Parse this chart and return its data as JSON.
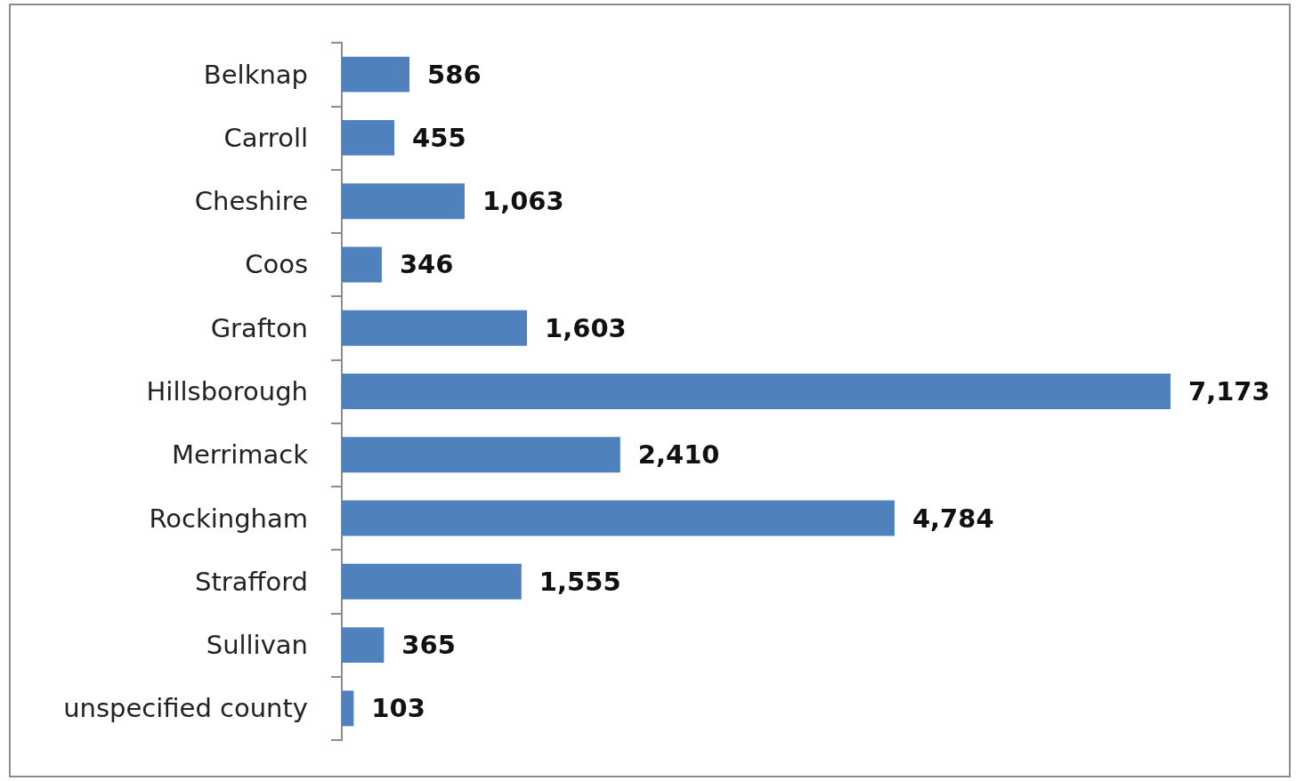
{
  "chart_data": {
    "type": "bar",
    "orientation": "horizontal",
    "categories": [
      "Belknap",
      "Carroll",
      "Cheshire",
      "Coos",
      "Grafton",
      "Hillsborough",
      "Merrimack",
      "Rockingham",
      "Strafford",
      "Sullivan",
      "unspecified county"
    ],
    "values": [
      586,
      455,
      1063,
      346,
      1603,
      7173,
      2410,
      4784,
      1555,
      365,
      103
    ],
    "value_labels": [
      "586",
      "455",
      "1,063",
      "346",
      "1,603",
      "7,173",
      "2,410",
      "4,784",
      "1,555",
      "365",
      "103"
    ],
    "color": "#4f81bd"
  }
}
